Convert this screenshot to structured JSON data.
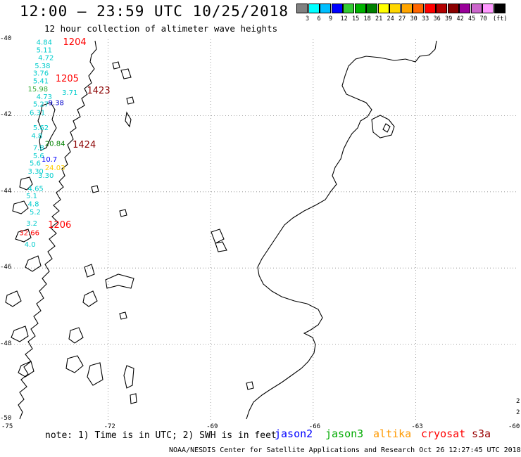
{
  "header": {
    "title": "12:00 – 23:59 UTC 10/25/2018",
    "subtitle": "12 hour collection of altimeter wave heights"
  },
  "legend": {
    "unit": "(ft)",
    "labels": [
      "3",
      "6",
      "9",
      "12",
      "15",
      "18",
      "21",
      "24",
      "27",
      "30",
      "33",
      "36",
      "39",
      "42",
      "45",
      "70"
    ],
    "colors": [
      "#808080",
      "#00ffff",
      "#00bfff",
      "#0000ff",
      "#33cc33",
      "#00b300",
      "#008000",
      "#ffff00",
      "#ffd700",
      "#ffa500",
      "#ff6600",
      "#ff0000",
      "#b30000",
      "#8b0000",
      "#990099",
      "#cc66cc",
      "#ff99ff",
      "#000000"
    ]
  },
  "axes": {
    "lat_labels": [
      "-40",
      "-42",
      "-44",
      "-46",
      "-48",
      "-50"
    ],
    "lon_labels": [
      "-75",
      "-72",
      "-69",
      "-66",
      "-63",
      "-60"
    ],
    "right_edge_marks": [
      "2",
      "2"
    ]
  },
  "map": {
    "lon_range": [
      -75,
      -60
    ],
    "lat_range": [
      -50,
      -40
    ],
    "grid_lons": [
      -72,
      -69,
      -66,
      -63
    ],
    "grid_lats": [
      -42,
      -44,
      -46,
      -48
    ]
  },
  "track_labels": [
    {
      "text": "1204",
      "color": "#ff0000",
      "lon": -73.32,
      "lat": -40.07
    },
    {
      "text": "1205",
      "color": "#ff0000",
      "lon": -73.54,
      "lat": -41.03
    },
    {
      "text": "1423",
      "color": "#8b0000",
      "lon": -72.62,
      "lat": -41.35
    },
    {
      "text": "1424",
      "color": "#8b0000",
      "lon": -73.04,
      "lat": -42.77
    },
    {
      "text": "1206",
      "color": "#ff0000",
      "lon": -73.76,
      "lat": -44.87
    }
  ],
  "wave_values": [
    {
      "v": "4.84",
      "c": "#00cccc",
      "lon": -74.1,
      "lat": -40.06
    },
    {
      "v": "5.11",
      "c": "#00cccc",
      "lon": -74.1,
      "lat": -40.27
    },
    {
      "v": "4.72",
      "c": "#00cccc",
      "lon": -74.05,
      "lat": -40.47
    },
    {
      "v": "5.38",
      "c": "#00cccc",
      "lon": -74.15,
      "lat": -40.68
    },
    {
      "v": "3.76",
      "c": "#00cccc",
      "lon": -74.2,
      "lat": -40.88
    },
    {
      "v": "5.41",
      "c": "#00cccc",
      "lon": -74.2,
      "lat": -41.08
    },
    {
      "v": "15.98",
      "c": "#33aa33",
      "lon": -74.35,
      "lat": -41.29
    },
    {
      "v": "3.71",
      "c": "#00cccc",
      "lon": -73.35,
      "lat": -41.38
    },
    {
      "v": "4.73",
      "c": "#00cccc",
      "lon": -74.1,
      "lat": -41.49
    },
    {
      "v": "5.27",
      "c": "#00cccc",
      "lon": -74.2,
      "lat": -41.69
    },
    {
      "v": "9.38",
      "c": "#0000cc",
      "lon": -73.75,
      "lat": -41.65
    },
    {
      "v": "6.31",
      "c": "#00cccc",
      "lon": -74.3,
      "lat": -41.91
    },
    {
      "v": "5.62",
      "c": "#00cccc",
      "lon": -74.2,
      "lat": -42.31
    },
    {
      "v": "4.8",
      "c": "#00cccc",
      "lon": -74.25,
      "lat": -42.52
    },
    {
      "v": "20.84",
      "c": "#008000",
      "lon": -73.85,
      "lat": -42.72
    },
    {
      "v": "7.8",
      "c": "#00cccc",
      "lon": -74.2,
      "lat": -42.83
    },
    {
      "v": "5.6",
      "c": "#00cccc",
      "lon": -74.2,
      "lat": -43.04
    },
    {
      "v": "10.7",
      "c": "#0000ff",
      "lon": -73.95,
      "lat": -43.14
    },
    {
      "v": "5.6",
      "c": "#00cccc",
      "lon": -74.3,
      "lat": -43.24
    },
    {
      "v": "3.30",
      "c": "#00cccc",
      "lon": -74.35,
      "lat": -43.45
    },
    {
      "v": "24.03",
      "c": "#ffcc00",
      "lon": -73.85,
      "lat": -43.36
    },
    {
      "v": "3.30",
      "c": "#00cccc",
      "lon": -74.05,
      "lat": -43.56
    },
    {
      "v": "4.65",
      "c": "#00cccc",
      "lon": -74.35,
      "lat": -43.9
    },
    {
      "v": "5.1",
      "c": "#00cccc",
      "lon": -74.4,
      "lat": -44.1
    },
    {
      "v": "4.8",
      "c": "#00cccc",
      "lon": -74.35,
      "lat": -44.31
    },
    {
      "v": "5.2",
      "c": "#00cccc",
      "lon": -74.3,
      "lat": -44.52
    },
    {
      "v": "3.2",
      "c": "#00cccc",
      "lon": -74.4,
      "lat": -44.82
    },
    {
      "v": "32.66",
      "c": "#ff0000",
      "lon": -74.6,
      "lat": -45.06
    },
    {
      "v": "4.0",
      "c": "#00cccc",
      "lon": -74.45,
      "lat": -45.37
    }
  ],
  "footer": {
    "note": "note: 1) Time is in UTC; 2) SWH is in feet",
    "satellites": [
      {
        "name": "jason2",
        "color": "#0000ff"
      },
      {
        "name": "jason3",
        "color": "#00aa00"
      },
      {
        "name": "altika",
        "color": "#ff9900"
      },
      {
        "name": "cryosat",
        "color": "#ff0000"
      },
      {
        "name": "s3a",
        "color": "#990000"
      }
    ],
    "credit": "NOAA/NESDIS Center for Satellite Applications and Research    Oct 26 12:27:45 UTC 2018"
  }
}
